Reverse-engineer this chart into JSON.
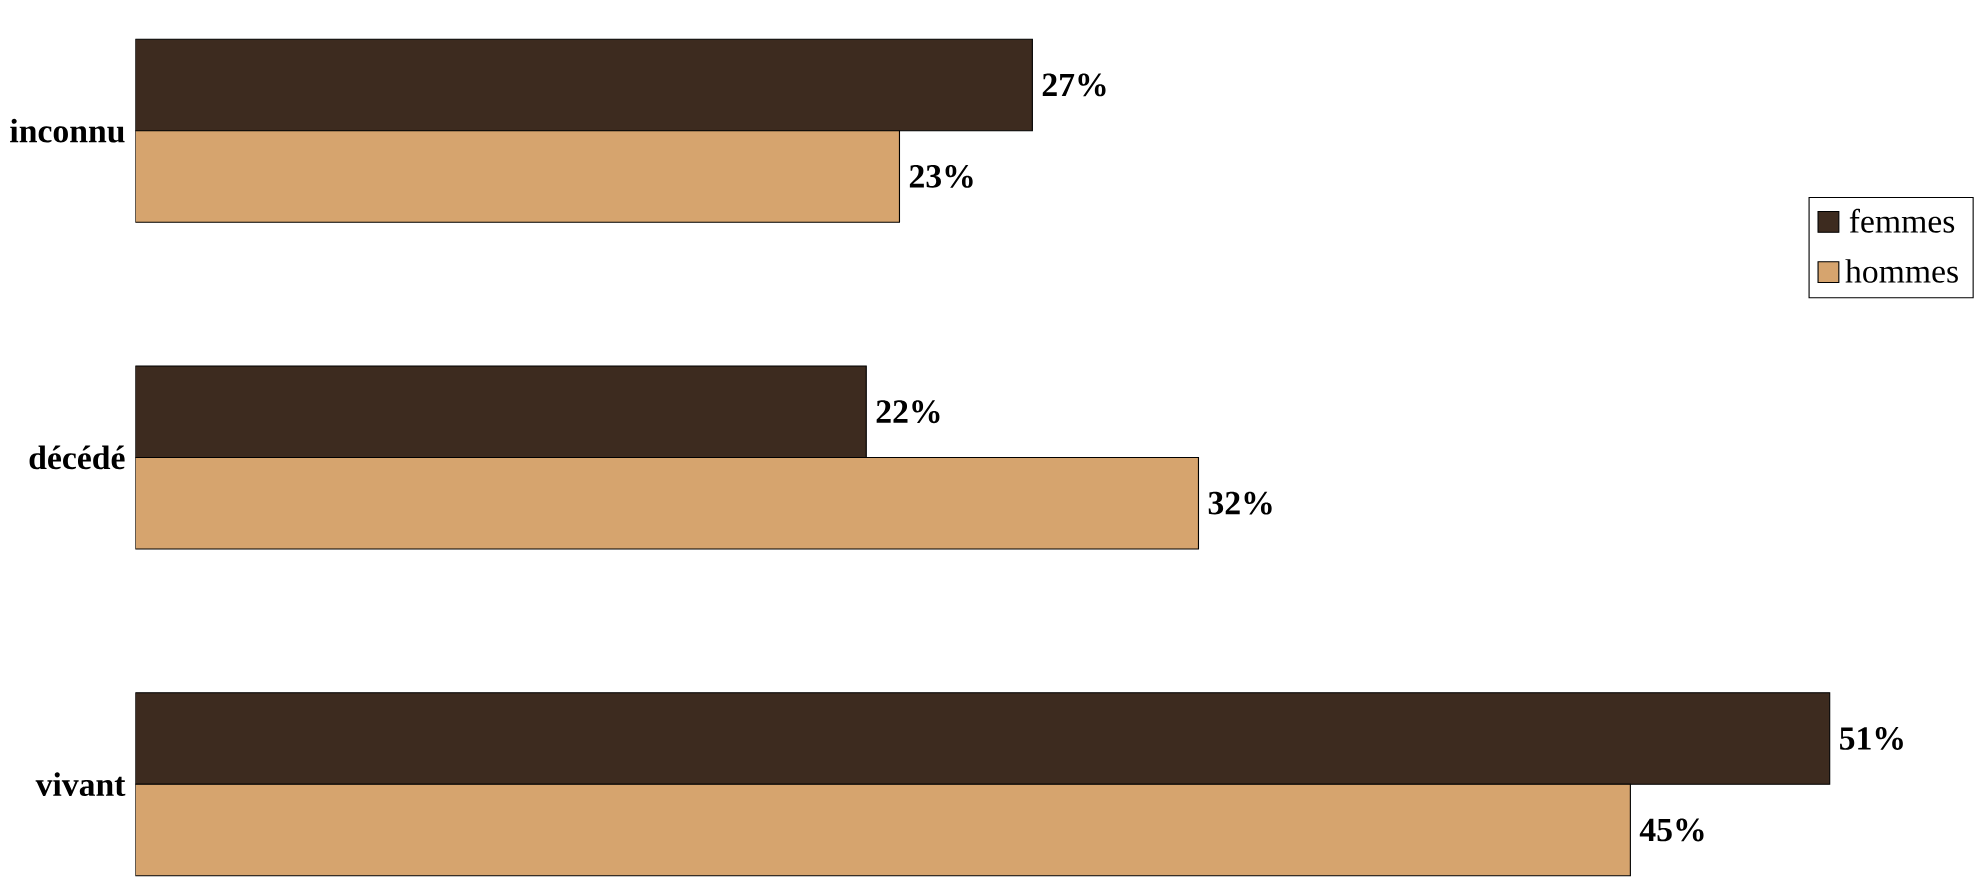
{
  "chart_data": {
    "type": "bar",
    "orientation": "horizontal",
    "categories": [
      "inconnu",
      "décédé",
      "vivant"
    ],
    "series": [
      {
        "name": "femmes",
        "color": "#3d2b1f",
        "values": [
          27,
          22,
          51
        ],
        "value_labels": [
          "27%",
          "22%",
          "51%"
        ]
      },
      {
        "name": "hommes",
        "color": "#d6a46e",
        "values": [
          23,
          32,
          45
        ],
        "value_labels": [
          "23%",
          "32%",
          "45%"
        ]
      }
    ],
    "legend": "right"
  }
}
